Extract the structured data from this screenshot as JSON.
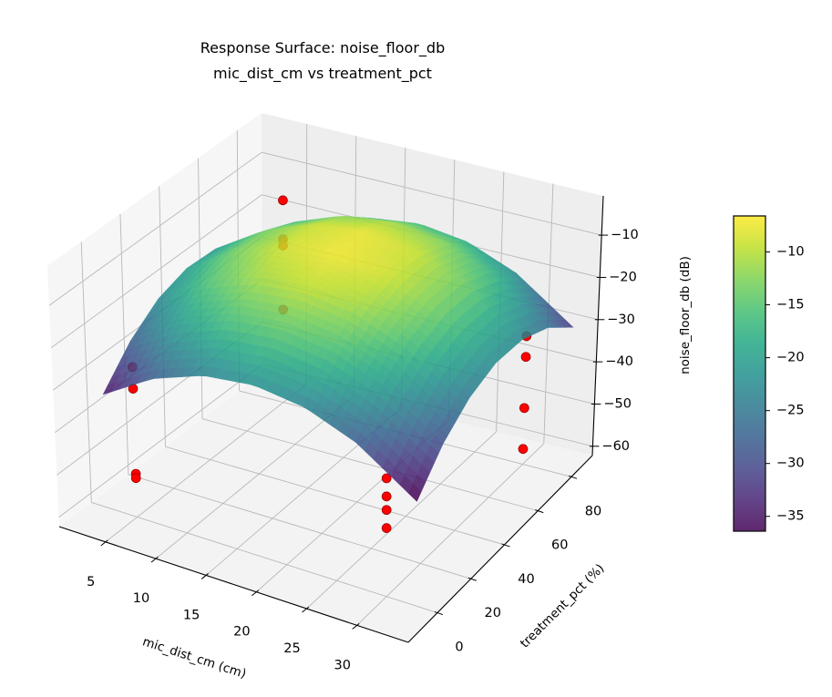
{
  "chart_data": {
    "type": "surface3d",
    "title": "Response Surface: noise_floor_db",
    "subtitle": "mic_dist_cm vs treatment_pct",
    "xlabel": "mic_dist_cm (cm)",
    "ylabel": "treatment_pct (%)",
    "zlabel": "noise_floor_db (dB)",
    "xlim": [
      0.4,
      35.1
    ],
    "ylim": [
      -17.4,
      92.5
    ],
    "zlim": [
      -62.2,
      -0.7
    ],
    "xticks": [
      5,
      10,
      15,
      20,
      25,
      30
    ],
    "yticks": [
      0,
      20,
      40,
      60,
      80
    ],
    "zticks": [
      -60,
      -50,
      -40,
      -30,
      -20,
      -10
    ],
    "grid": true,
    "surface": {
      "colormap": "viridis",
      "x": [
        2,
        7,
        12,
        17,
        22,
        27,
        33
      ],
      "y": [
        0,
        15,
        30,
        45,
        60,
        75,
        90
      ],
      "z": [
        [
          -35.5,
          -28.0,
          -23.5,
          -22.0,
          -23.5,
          -28.0,
          -37.4
        ],
        [
          -27.9,
          -20.4,
          -15.9,
          -14.4,
          -15.9,
          -20.4,
          -29.7
        ],
        [
          -22.9,
          -15.4,
          -10.9,
          -9.4,
          -10.9,
          -15.4,
          -24.8
        ],
        [
          -20.7,
          -13.2,
          -8.7,
          -7.2,
          -8.7,
          -13.2,
          -22.5
        ],
        [
          -21.1,
          -13.6,
          -9.1,
          -7.6,
          -9.1,
          -13.6,
          -23.0
        ],
        [
          -24.3,
          -16.8,
          -12.3,
          -10.8,
          -12.3,
          -16.8,
          -26.1
        ],
        [
          -30.1,
          -22.6,
          -18.1,
          -16.6,
          -18.1,
          -22.6,
          -32.0
        ]
      ]
    },
    "scatter": {
      "color": "#ff0000",
      "edgecolor": "#8b0000",
      "points": [
        {
          "x": 5,
          "y": 0,
          "z": -26.8
        },
        {
          "x": 5,
          "y": 0,
          "z": -31.9
        },
        {
          "x": 5,
          "y": 0,
          "z": -52.0
        },
        {
          "x": 5,
          "y": 0,
          "z": -53.0
        },
        {
          "x": 30,
          "y": 0,
          "z": -34.2
        },
        {
          "x": 30,
          "y": 0,
          "z": -38.5
        },
        {
          "x": 30,
          "y": 0,
          "z": -41.7
        },
        {
          "x": 30,
          "y": 0,
          "z": -46.0
        },
        {
          "x": 30,
          "y": 80,
          "z": -31.9
        },
        {
          "x": 30,
          "y": 80,
          "z": -36.8
        },
        {
          "x": 30,
          "y": 80,
          "z": -48.9
        },
        {
          "x": 30,
          "y": 80,
          "z": -58.6
        },
        {
          "x": 5,
          "y": 80,
          "z": -14.5
        },
        {
          "x": 5,
          "y": 80,
          "z": -23.7
        },
        {
          "x": 5,
          "y": 80,
          "z": -25.2
        },
        {
          "x": 5,
          "y": 80,
          "z": -40.3
        }
      ]
    },
    "colorbar": {
      "clim": [
        -36.4,
        -6.6
      ],
      "ticks": [
        -35,
        -30,
        -25,
        -20,
        -15,
        -10
      ]
    }
  }
}
